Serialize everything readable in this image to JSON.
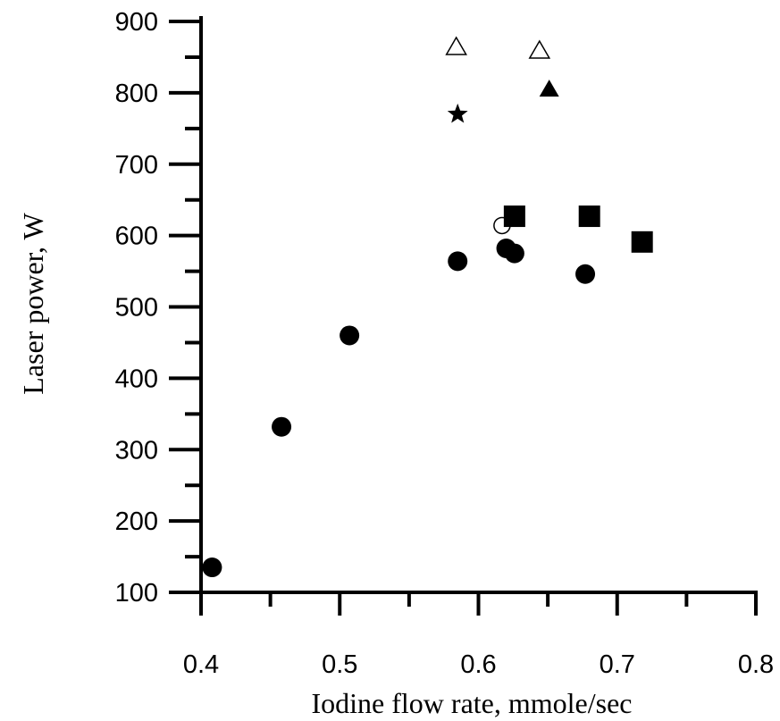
{
  "chart_data": {
    "type": "scatter",
    "xlabel": "Iodine flow rate, mmole/sec",
    "ylabel": "Laser power, W",
    "xlim": [
      0.4,
      0.8
    ],
    "ylim": [
      100,
      900
    ],
    "x_ticks": [
      0.4,
      0.5,
      0.6,
      0.7,
      0.8
    ],
    "x_tick_labels": [
      "0.4",
      "0.5",
      "0.6",
      "0.7",
      "0.8"
    ],
    "y_ticks": [
      100,
      200,
      300,
      400,
      500,
      600,
      700,
      800,
      900
    ],
    "y_tick_labels": [
      "100",
      "200",
      "300",
      "400",
      "500",
      "600",
      "700",
      "800",
      "900"
    ],
    "grid": false,
    "series": [
      {
        "marker": "filled-circle",
        "points": [
          {
            "x": 0.408,
            "y": 135
          },
          {
            "x": 0.458,
            "y": 332
          },
          {
            "x": 0.507,
            "y": 460
          },
          {
            "x": 0.585,
            "y": 564
          },
          {
            "x": 0.62,
            "y": 582
          },
          {
            "x": 0.626,
            "y": 575
          },
          {
            "x": 0.677,
            "y": 546
          }
        ]
      },
      {
        "marker": "filled-square",
        "points": [
          {
            "x": 0.626,
            "y": 627
          },
          {
            "x": 0.68,
            "y": 627
          },
          {
            "x": 0.718,
            "y": 591
          }
        ]
      },
      {
        "marker": "open-triangle",
        "points": [
          {
            "x": 0.584,
            "y": 865
          },
          {
            "x": 0.644,
            "y": 860
          }
        ]
      },
      {
        "marker": "filled-triangle",
        "points": [
          {
            "x": 0.651,
            "y": 806
          }
        ]
      },
      {
        "marker": "star",
        "points": [
          {
            "x": 0.585,
            "y": 770
          }
        ]
      },
      {
        "marker": "open-circle",
        "points": [
          {
            "x": 0.617,
            "y": 614
          }
        ]
      }
    ]
  }
}
